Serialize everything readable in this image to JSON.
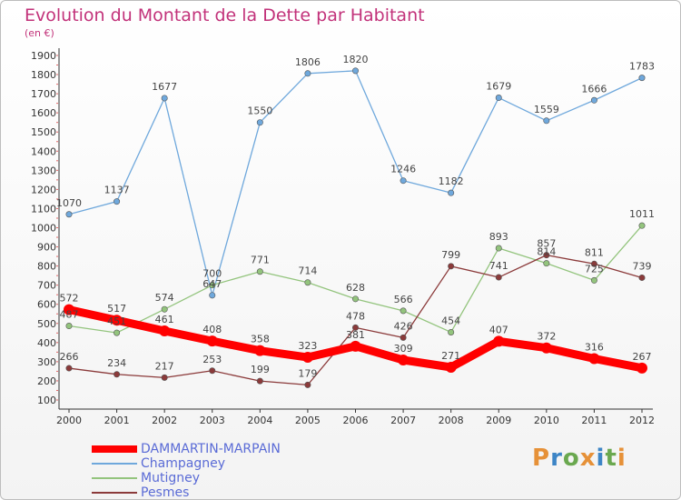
{
  "title": "Evolution du Montant de la Dette par Habitant",
  "subtitle": "(en €)",
  "logo": "Proxiti",
  "chart_data": {
    "type": "line",
    "title": "Evolution du Montant de la Dette par Habitant",
    "ylabel": "(en €)",
    "x": [
      2000,
      2001,
      2002,
      2003,
      2004,
      2005,
      2006,
      2007,
      2008,
      2009,
      2010,
      2011,
      2012
    ],
    "ylim": [
      100,
      1900
    ],
    "yticks": [
      100,
      200,
      300,
      400,
      500,
      600,
      700,
      800,
      900,
      1000,
      1100,
      1200,
      1300,
      1400,
      1500,
      1600,
      1700,
      1800,
      1900
    ],
    "grid": false,
    "legend": "bottom-left",
    "series": [
      {
        "name": "DAMMARTIN-MARPAIN",
        "color": "#ff0000",
        "values": [
          572,
          517,
          461,
          408,
          358,
          323,
          381,
          309,
          271,
          407,
          372,
          316,
          267
        ]
      },
      {
        "name": "Champagney",
        "color": "#6fa8dc",
        "values": [
          1070,
          1137,
          1677,
          647,
          1550,
          1806,
          1820,
          1246,
          1182,
          1679,
          1559,
          1666,
          1783
        ]
      },
      {
        "name": "Mutigney",
        "color": "#93c47d",
        "values": [
          487,
          451,
          574,
          700,
          771,
          714,
          628,
          566,
          454,
          893,
          814,
          725,
          1011
        ]
      },
      {
        "name": "Pesmes",
        "color": "#8b3a3a",
        "values": [
          266,
          234,
          217,
          253,
          199,
          179,
          478,
          426,
          799,
          741,
          857,
          811,
          739
        ]
      }
    ]
  }
}
